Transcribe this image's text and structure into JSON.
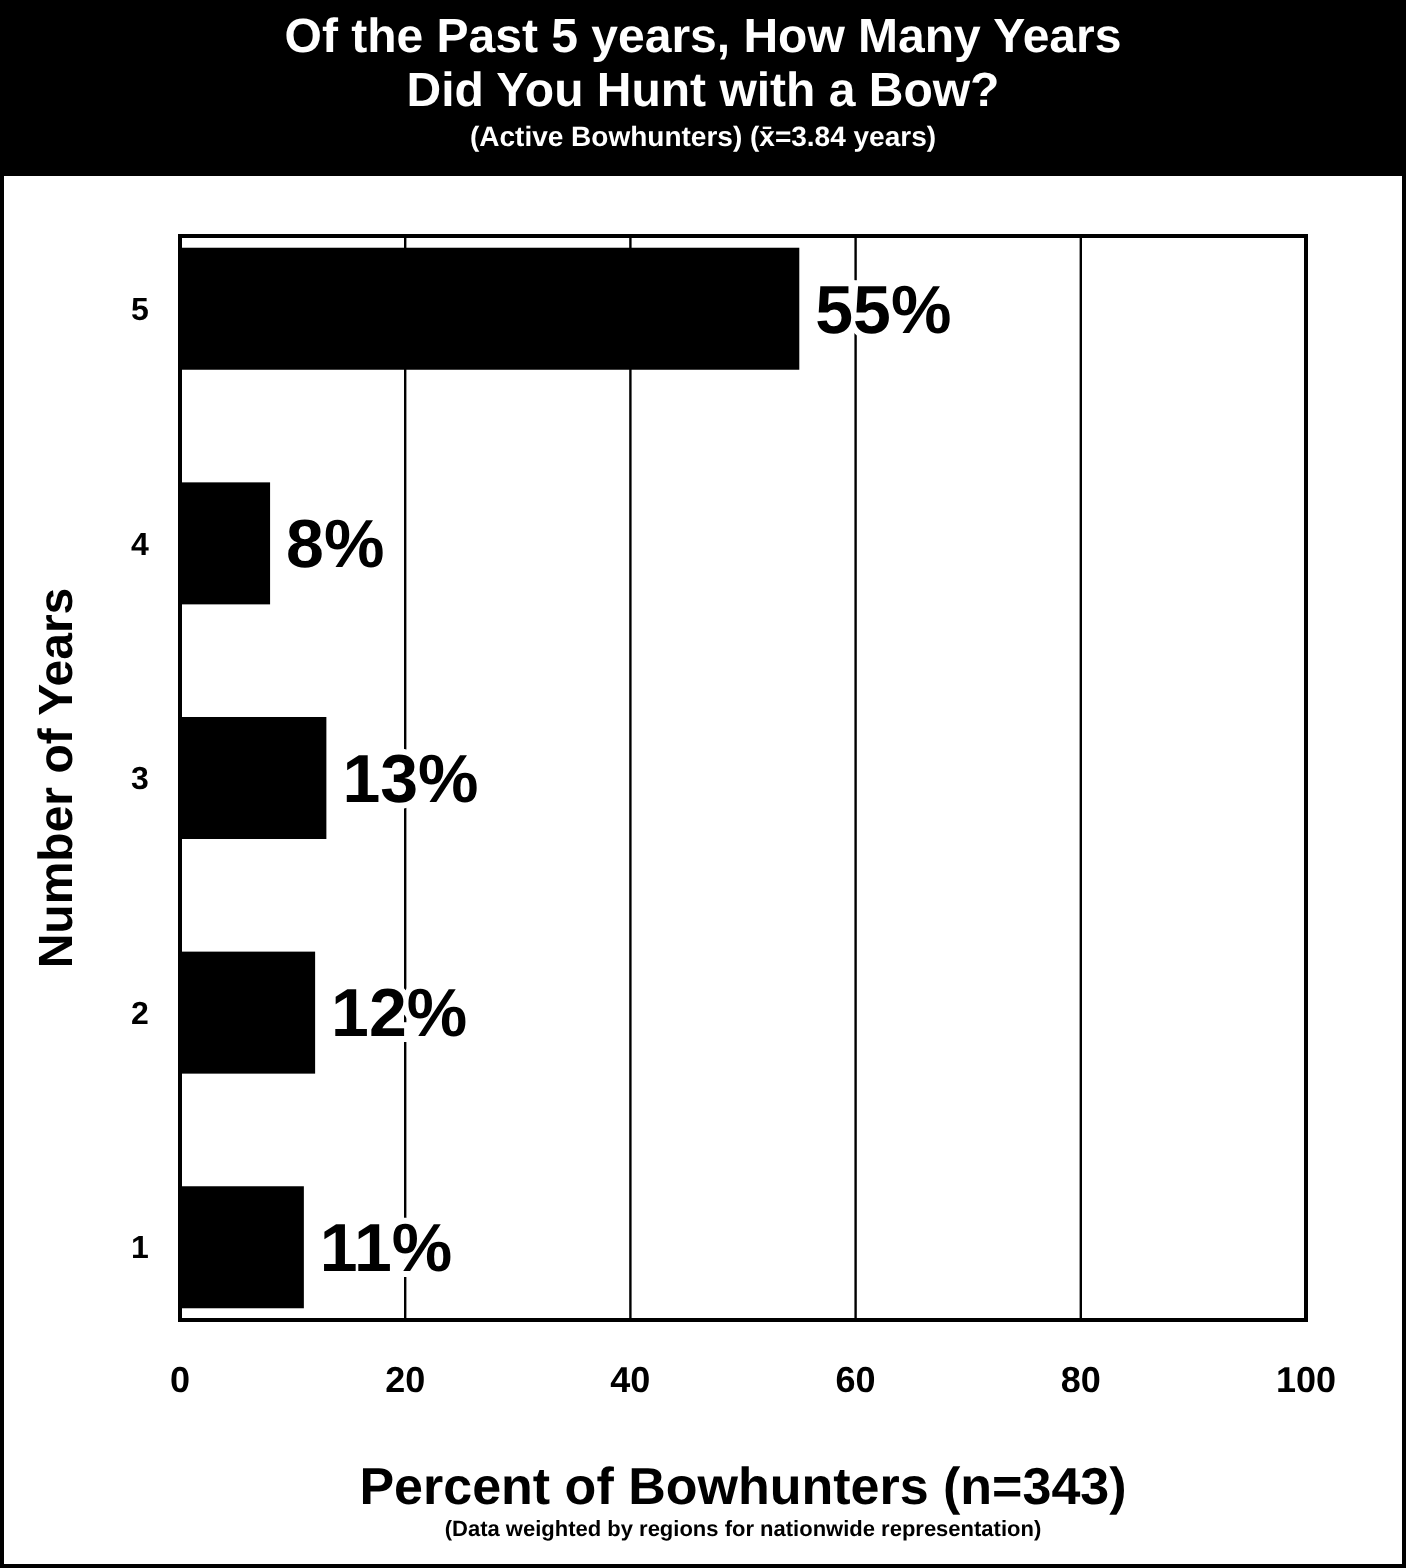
{
  "chart_data": {
    "type": "bar",
    "orientation": "horizontal",
    "title": "Of the Past 5 years, How Many Years Did You Hunt with a Bow?",
    "subtitle": "(Active Bowhunters)   (x̄=3.84 years)",
    "xlabel": "Percent of Bowhunters (n=343)",
    "ylabel": "Number of Years",
    "annotations": [
      "(Data weighted by regions for nationwide representation)"
    ],
    "categories": [
      "5",
      "4",
      "3",
      "2",
      "1"
    ],
    "values": [
      55,
      8,
      13,
      12,
      11
    ],
    "value_labels": [
      "55%",
      "8%",
      "13%",
      "12%",
      "11%"
    ],
    "color": "#000000",
    "xlim": [
      0,
      100
    ],
    "xticks": [
      0,
      20,
      40,
      60,
      80,
      100
    ],
    "grid": "x"
  }
}
